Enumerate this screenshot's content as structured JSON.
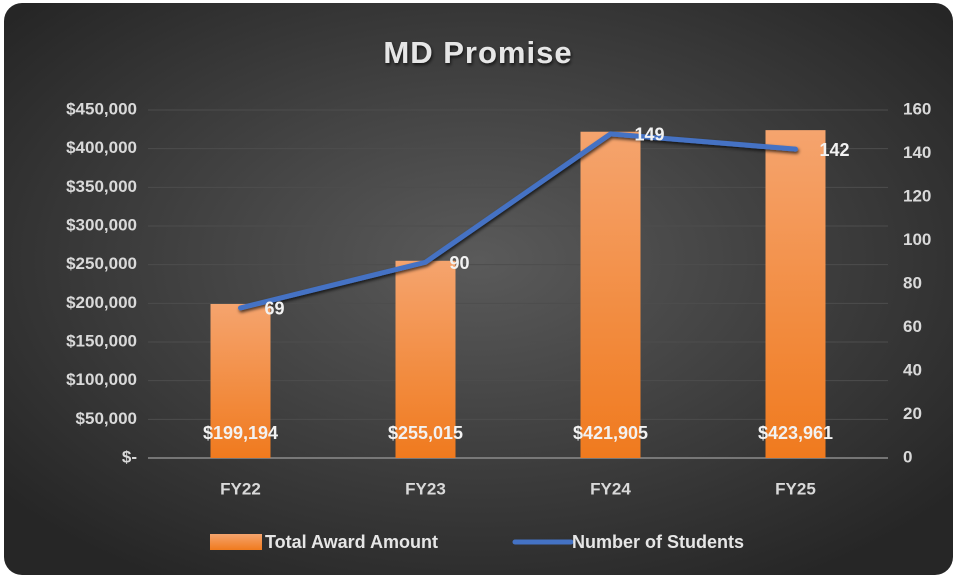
{
  "chart_data": {
    "type": "bar",
    "title": "MD Promise",
    "categories": [
      "FY22",
      "FY23",
      "FY24",
      "FY25"
    ],
    "series": [
      {
        "name": "Total Award Amount",
        "type": "bar",
        "color": "#f07a1e",
        "values": [
          199194,
          255015,
          421905,
          423961
        ],
        "value_labels": [
          "$199,194",
          "$255,015",
          "$421,905",
          "$423,961"
        ]
      },
      {
        "name": "Number of Students",
        "type": "line",
        "axis": "y2",
        "color": "#4472c4",
        "values": [
          69,
          90,
          149,
          142
        ]
      }
    ],
    "ylim": [
      0,
      450000
    ],
    "yticks": [
      {
        "value": 0,
        "label": "$-"
      },
      {
        "value": 50000,
        "label": "$50,000"
      },
      {
        "value": 100000,
        "label": "$100,000"
      },
      {
        "value": 150000,
        "label": "$150,000"
      },
      {
        "value": 200000,
        "label": "$200,000"
      },
      {
        "value": 250000,
        "label": "$250,000"
      },
      {
        "value": 300000,
        "label": "$300,000"
      },
      {
        "value": 350000,
        "label": "$350,000"
      },
      {
        "value": 400000,
        "label": "$400,000"
      },
      {
        "value": 450000,
        "label": "$450,000"
      }
    ],
    "y2lim": [
      0,
      160
    ],
    "y2ticks": [
      0,
      20,
      40,
      60,
      80,
      100,
      120,
      140,
      160
    ],
    "grid": true,
    "legend": "bottom"
  }
}
